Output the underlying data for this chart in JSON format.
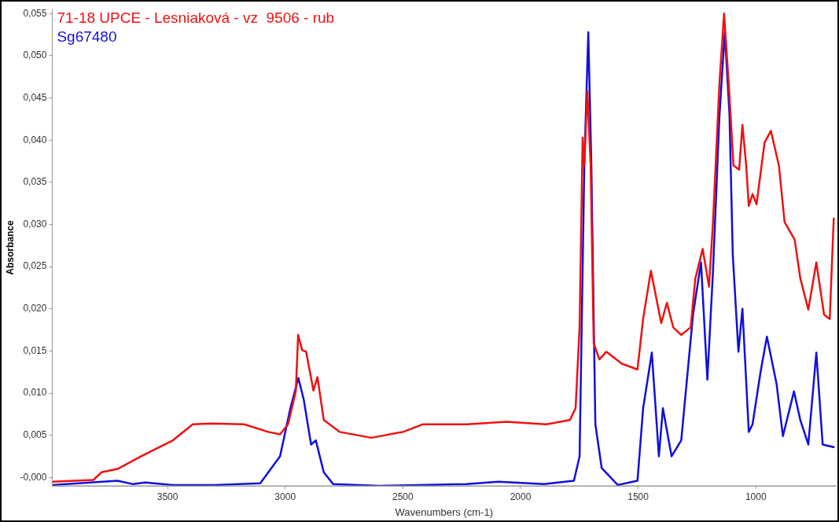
{
  "chart_data": {
    "type": "line",
    "xlabel": "Wavenumbers (cm-1)",
    "ylabel": "Absorbance",
    "legend": "top left",
    "grid": false,
    "marker": "none",
    "line_style": "solid",
    "xlim": [
      3990,
      660
    ],
    "xticks": [
      3500,
      3000,
      2500,
      2000,
      1500,
      1000
    ],
    "ylim": [
      -0.001,
      0.0555
    ],
    "yticks": [
      {
        "value": 0,
        "label": "-0,000"
      },
      {
        "value": 0.005,
        "label": "0,005"
      },
      {
        "value": 0.01,
        "label": "0,010"
      },
      {
        "value": 0.015,
        "label": "0,015"
      },
      {
        "value": 0.02,
        "label": "0,020"
      },
      {
        "value": 0.025,
        "label": "0,025"
      },
      {
        "value": 0.03,
        "label": "0,030"
      },
      {
        "value": 0.035,
        "label": "0,035"
      },
      {
        "value": 0.04,
        "label": "0,040"
      },
      {
        "value": 0.045,
        "label": "0,045"
      },
      {
        "value": 0.05,
        "label": "0,050"
      },
      {
        "value": 0.055,
        "label": "0,055"
      }
    ],
    "series": [
      {
        "name": "71-18 UPCE - Lesniaková - vz  9506 - rub",
        "color": "#ee1111",
        "x": [
          3990,
          3815,
          3781,
          3713,
          3612,
          3477,
          3393,
          3309,
          3174,
          3072,
          3022,
          2988,
          2955,
          2945,
          2928,
          2911,
          2880,
          2863,
          2836,
          2769,
          2634,
          2499,
          2414,
          2229,
          2060,
          1891,
          1790,
          1766,
          1749,
          1736,
          1729,
          1716,
          1702,
          1689,
          1665,
          1635,
          1570,
          1503,
          1479,
          1446,
          1402,
          1378,
          1351,
          1317,
          1277,
          1257,
          1226,
          1199,
          1182,
          1155,
          1135,
          1115,
          1095,
          1071,
          1057,
          1041,
          1030,
          1014,
          997,
          963,
          936,
          902,
          878,
          835,
          811,
          777,
          743,
          710,
          686,
          669
        ],
        "values": [
          -0.0005,
          -0.0003,
          0.0006,
          0.001,
          0.0025,
          0.0044,
          0.0063,
          0.0064,
          0.0063,
          0.0054,
          0.0051,
          0.0063,
          0.0102,
          0.0169,
          0.0151,
          0.0149,
          0.0103,
          0.0119,
          0.0068,
          0.0054,
          0.0047,
          0.0054,
          0.0063,
          0.0063,
          0.0066,
          0.0063,
          0.0068,
          0.0082,
          0.0178,
          0.0403,
          0.037,
          0.0458,
          0.037,
          0.0159,
          0.014,
          0.0149,
          0.0135,
          0.0128,
          0.0188,
          0.0245,
          0.0183,
          0.0207,
          0.0178,
          0.0169,
          0.0178,
          0.0236,
          0.0271,
          0.0226,
          0.0303,
          0.0466,
          0.055,
          0.0466,
          0.037,
          0.0365,
          0.0418,
          0.037,
          0.0322,
          0.0336,
          0.0324,
          0.0397,
          0.0411,
          0.037,
          0.0303,
          0.0282,
          0.0236,
          0.0199,
          0.0255,
          0.0193,
          0.0188,
          0.0307
        ]
      },
      {
        "name": "Sg67480",
        "color": "#1010dd",
        "x": [
          3990,
          3713,
          3646,
          3595,
          3477,
          3300,
          3106,
          3022,
          2978,
          2944,
          2921,
          2890,
          2870,
          2836,
          2796,
          2600,
          2229,
          2094,
          1900,
          1773,
          1749,
          1729,
          1712,
          1699,
          1682,
          1655,
          1587,
          1503,
          1479,
          1442,
          1412,
          1395,
          1358,
          1317,
          1267,
          1233,
          1206,
          1182,
          1155,
          1132,
          1112,
          1098,
          1074,
          1057,
          1030,
          1014,
          980,
          953,
          912,
          885,
          838,
          811,
          777,
          743,
          716,
          669
        ],
        "values": [
          -0.0009,
          -0.0004,
          -0.0008,
          -0.0006,
          -0.0009,
          -0.0009,
          -0.0007,
          0.0025,
          0.0082,
          0.0118,
          0.0092,
          0.0039,
          0.0044,
          0.0006,
          -0.0008,
          -0.001,
          -0.0008,
          -0.0005,
          -0.0008,
          -0.0004,
          0.0025,
          0.037,
          0.0528,
          0.037,
          0.0063,
          0.0011,
          -0.0009,
          -0.0004,
          0.0082,
          0.0148,
          0.0025,
          0.0082,
          0.0025,
          0.0044,
          0.0193,
          0.0255,
          0.0116,
          0.0245,
          0.0427,
          0.0528,
          0.043,
          0.0264,
          0.0149,
          0.02,
          0.0054,
          0.0063,
          0.0125,
          0.0167,
          0.0111,
          0.0049,
          0.0102,
          0.0068,
          0.0039,
          0.0148,
          0.0039,
          0.0036
        ]
      }
    ]
  }
}
